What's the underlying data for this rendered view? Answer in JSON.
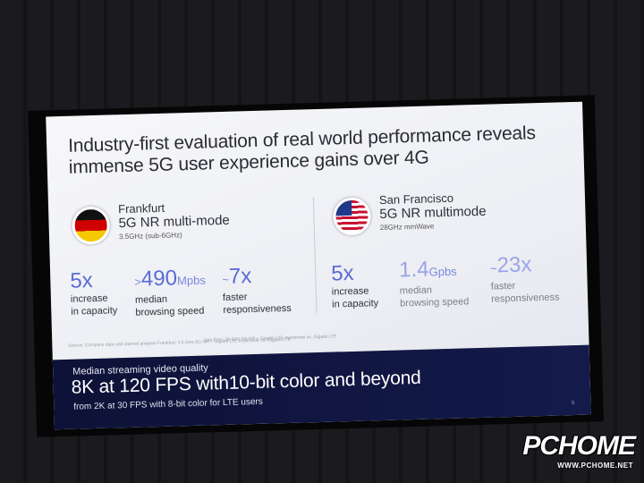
{
  "slide": {
    "title": "Industry-first evaluation of real world performance reveals immense 5G user experience gains over 4G",
    "page_number": "5"
  },
  "frankfurt": {
    "name": "Frankfurt",
    "mode": "5G NR multi-mode",
    "band": "3.5GHz (sub-6GHz)",
    "stats": [
      {
        "prefix": "",
        "value": "5x",
        "unit": "",
        "label": "increase\nin capacity"
      },
      {
        "prefix": ">",
        "value": "490",
        "unit": "Mpbs",
        "label": "median\nbrowsing speed"
      },
      {
        "prefix": "~",
        "value": "7x",
        "unit": "",
        "label": "faster\nresponsiveness"
      }
    ],
    "source": "Source: Company data and internal analysis  Frankfurt: 3.5 GHz 5G NR + Gigabit LTE multimode vs. Gigabit LTE"
  },
  "san_francisco": {
    "name": "San Francisco",
    "mode": "5G NR multimode",
    "band": "28GHz mmWave",
    "stats": [
      {
        "prefix": "",
        "value": "5x",
        "unit": "",
        "label": "increase\nin capacity"
      },
      {
        "prefix": "",
        "value": "1.4",
        "unit": "Gpbs",
        "label": "median\nbrowsing speed"
      },
      {
        "prefix": "~",
        "value": "23x",
        "unit": "",
        "label": "faster\nresponsiveness"
      }
    ],
    "source": "San Fran: 28 GHz 5G NR + Gigabit LTE multimode vs. Gigabit LTE"
  },
  "banner": {
    "subtitle": "Median streaming video quality",
    "headline": "8K at 120 FPS with10-bit color and beyond",
    "footnote": "from 2K at 30 FPS with 8-bit color for LTE users"
  },
  "watermark": {
    "logo": "PCHOME",
    "url": "WWW.PCHOME.NET"
  }
}
